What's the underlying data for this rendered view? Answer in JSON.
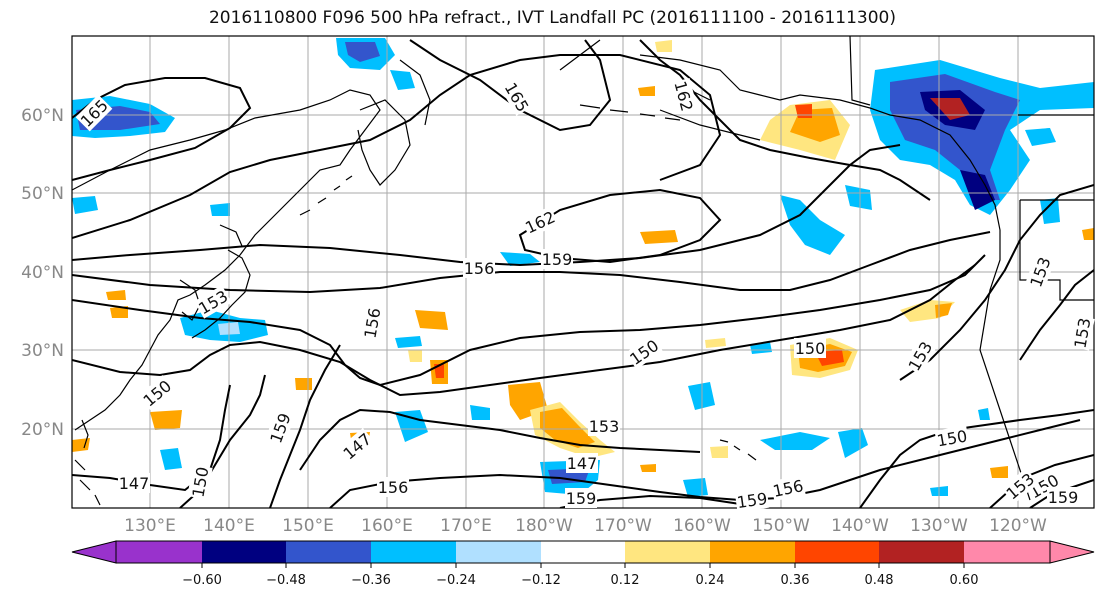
{
  "title": "2016110800 F096 500 hPa refract., IVT Landfall PC (2016111100 - 2016111300)",
  "axes": {
    "lon_labels": [
      "130°E",
      "140°E",
      "150°E",
      "160°E",
      "170°E",
      "180°W",
      "170°W",
      "160°W",
      "150°W",
      "140°W",
      "130°W",
      "120°W"
    ],
    "lat_labels": [
      "20°N",
      "30°N",
      "40°N",
      "50°N",
      "60°N"
    ]
  },
  "colorbar": {
    "tick_labels": [
      "−0.60",
      "−0.48",
      "−0.36",
      "−0.24",
      "−0.12",
      "0.12",
      "0.24",
      "0.36",
      "0.48",
      "0.60"
    ],
    "colors": [
      "#9932cc",
      "#000080",
      "#3355cc",
      "#00bfff",
      "#b0e0ff",
      "#ffffff",
      "#ffe680",
      "#ffa500",
      "#ff4500",
      "#b22222",
      "#ff88aa"
    ]
  },
  "contour_labels": [
    {
      "text": "165",
      "cls": "c1"
    },
    {
      "text": "165",
      "cls": "c2"
    },
    {
      "text": "162",
      "cls": "c3"
    },
    {
      "text": "162",
      "cls": "c4"
    },
    {
      "text": "159",
      "cls": "c5"
    },
    {
      "text": "156",
      "cls": "c6"
    },
    {
      "text": "156",
      "cls": "c7"
    },
    {
      "text": "153",
      "cls": "c8"
    },
    {
      "text": "150",
      "cls": "c9"
    },
    {
      "text": "150",
      "cls": "c10"
    },
    {
      "text": "159",
      "cls": "c11"
    },
    {
      "text": "147",
      "cls": "c12"
    },
    {
      "text": "150",
      "cls": "c13"
    },
    {
      "text": "147",
      "cls": "c14"
    },
    {
      "text": "156",
      "cls": "c15"
    },
    {
      "text": "147",
      "cls": "c16"
    },
    {
      "text": "153",
      "cls": "c17"
    },
    {
      "text": "159",
      "cls": "c18"
    },
    {
      "text": "150",
      "cls": "c19"
    },
    {
      "text": "150",
      "cls": "c20"
    },
    {
      "text": "153",
      "cls": "c21"
    },
    {
      "text": "159",
      "cls": "c22"
    },
    {
      "text": "156",
      "cls": "c23"
    },
    {
      "text": "150",
      "cls": "c24"
    },
    {
      "text": "153",
      "cls": "c25"
    },
    {
      "text": "153",
      "cls": "c26"
    },
    {
      "text": "153",
      "cls": "c27"
    },
    {
      "text": "159",
      "cls": "c28"
    }
  ]
}
